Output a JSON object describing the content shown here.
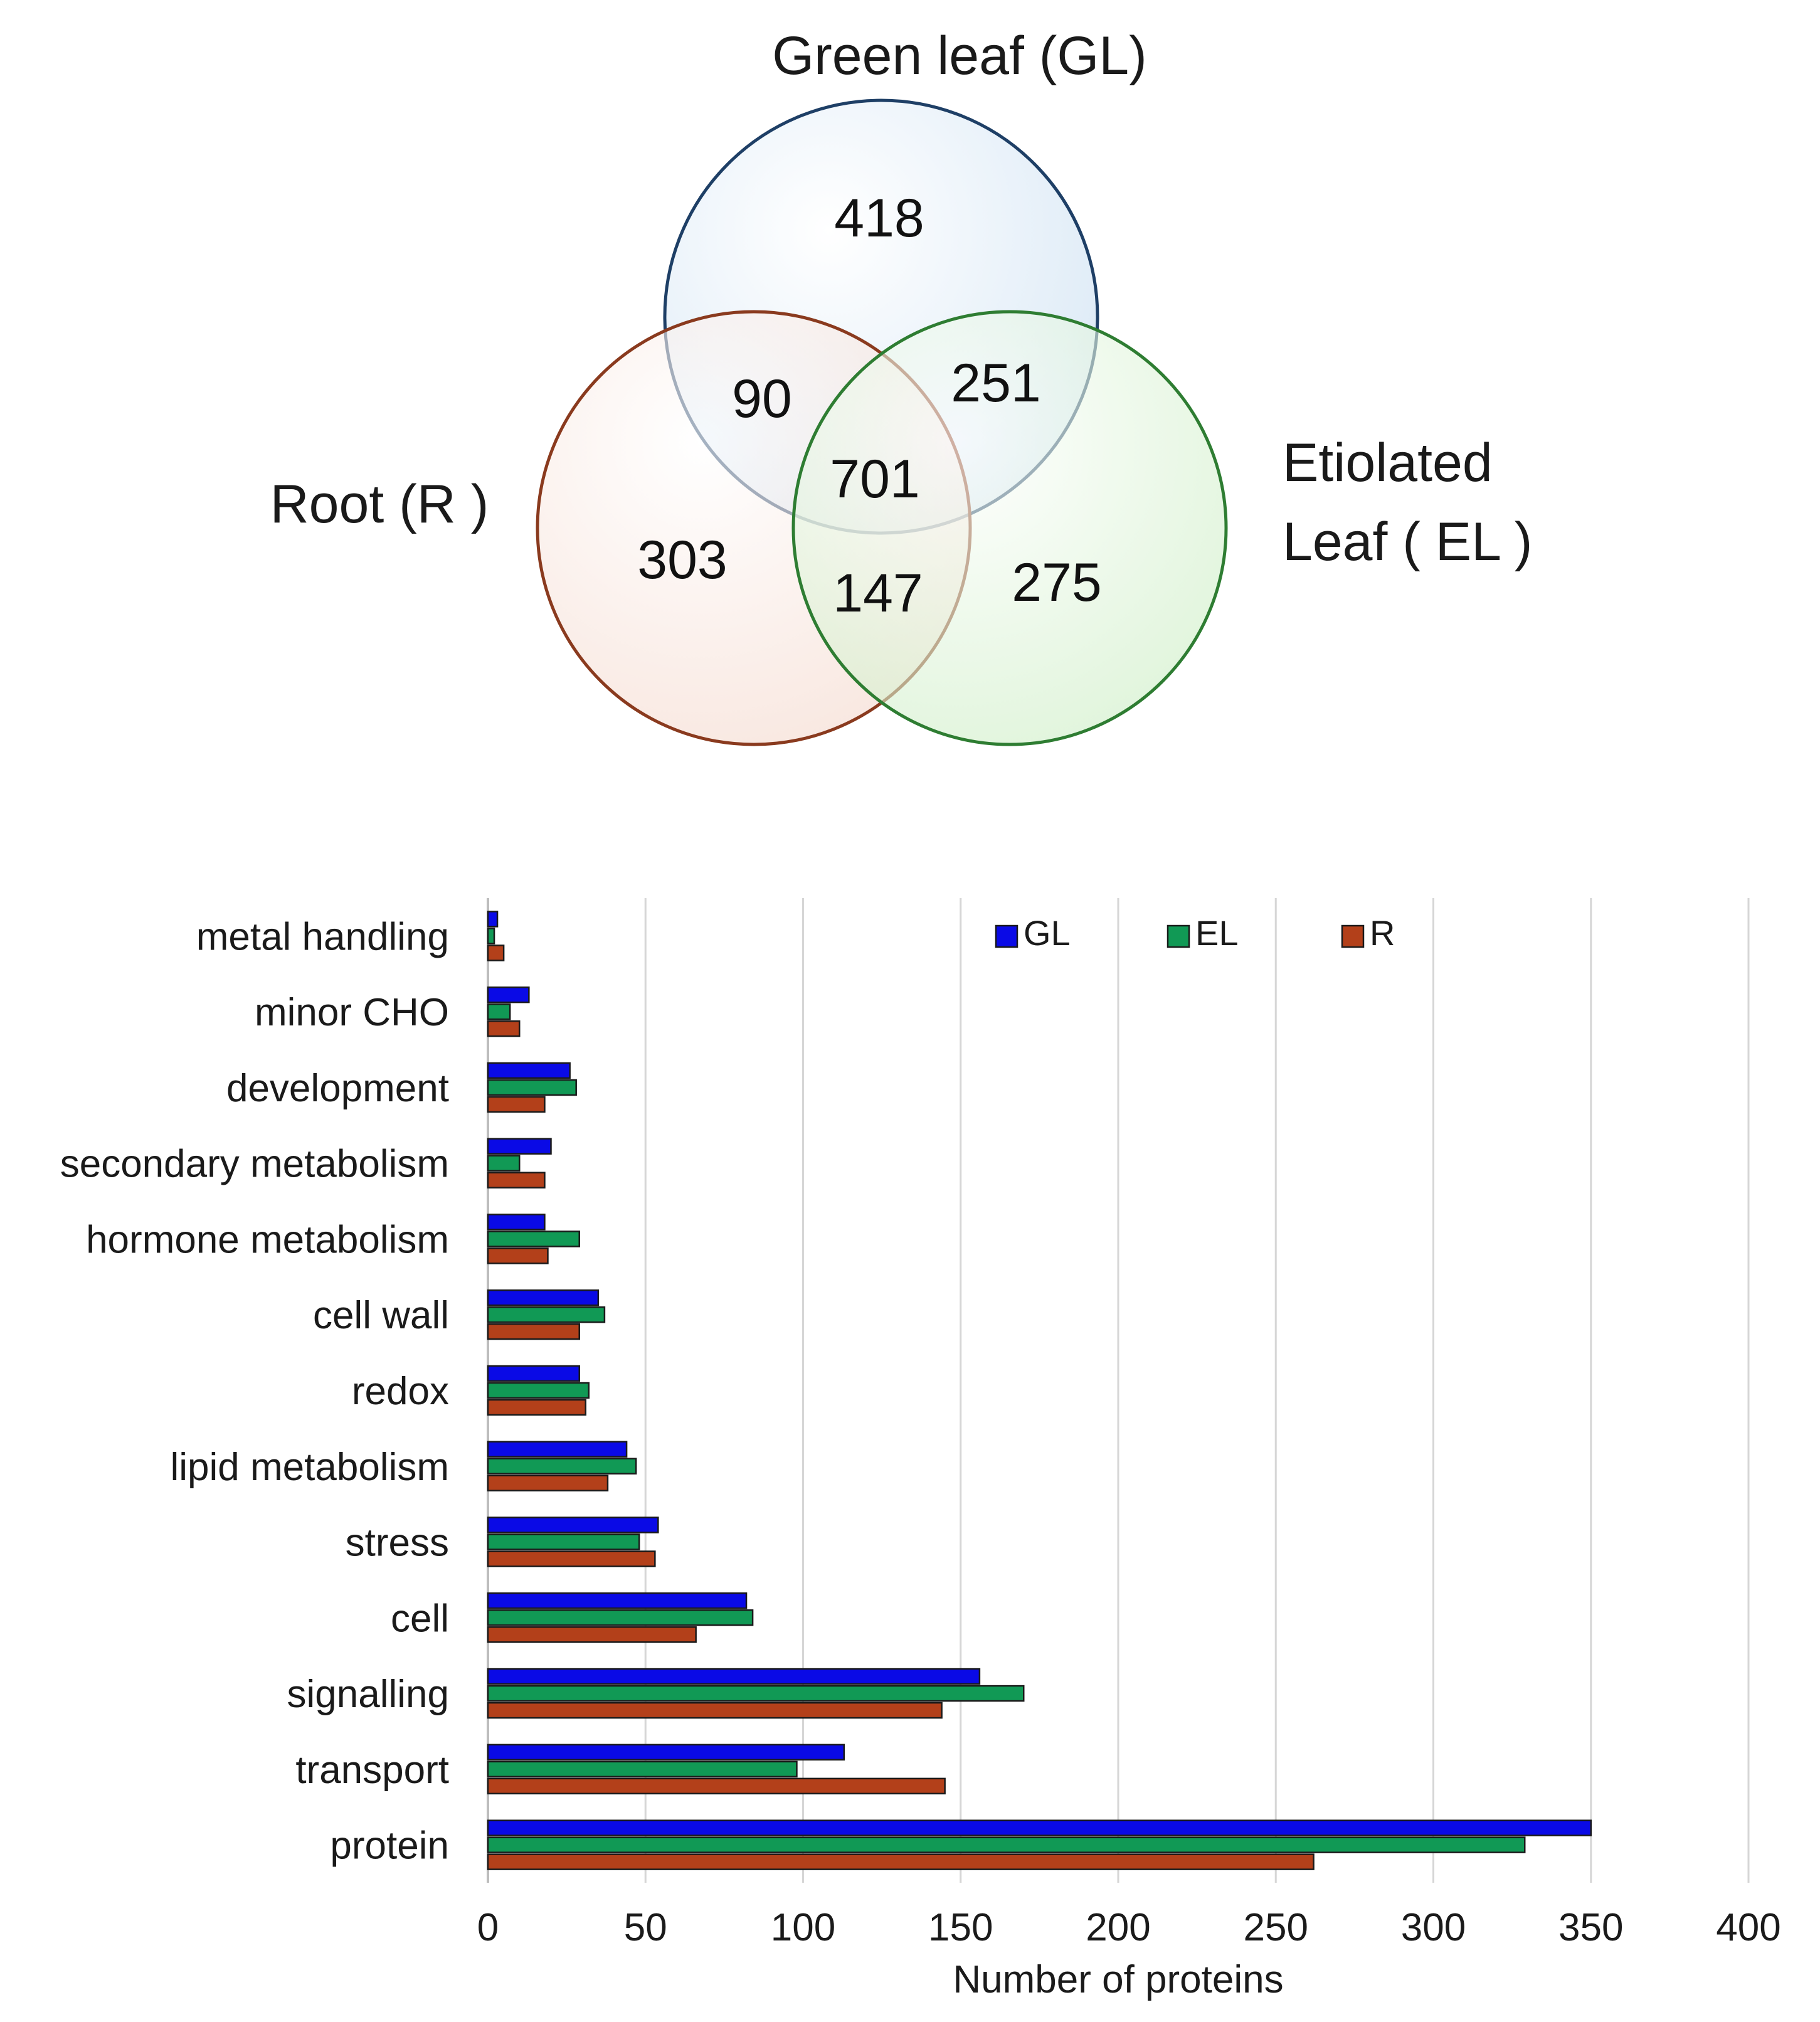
{
  "venn": {
    "sets": [
      {
        "key": "GL",
        "label_lines": [
          "Green leaf (GL)"
        ],
        "fill": "#cfe2f3",
        "stroke": "#1e3f66"
      },
      {
        "key": "R",
        "label_lines": [
          "Root (R )"
        ],
        "fill": "#f4d8cc",
        "stroke": "#8a3a1e"
      },
      {
        "key": "EL",
        "label_lines": [
          "Etiolated",
          "Leaf ( EL )"
        ],
        "fill": "#cdeec5",
        "stroke": "#2e7d32"
      }
    ],
    "regions": [
      {
        "sets": [
          "GL"
        ],
        "count": "418"
      },
      {
        "sets": [
          "R"
        ],
        "count": "303"
      },
      {
        "sets": [
          "EL"
        ],
        "count": "275"
      },
      {
        "sets": [
          "GL",
          "R"
        ],
        "count": "90"
      },
      {
        "sets": [
          "GL",
          "EL"
        ],
        "count": "251"
      },
      {
        "sets": [
          "R",
          "EL"
        ],
        "count": "147"
      },
      {
        "sets": [
          "GL",
          "R",
          "EL"
        ],
        "count": "701"
      }
    ]
  },
  "chart_data": {
    "type": "bar",
    "orientation": "horizontal",
    "categories": [
      "metal handling",
      "minor CHO",
      "development",
      "secondary metabolism",
      "hormone metabolism",
      "cell wall",
      "redox",
      "lipid metabolism",
      "stress",
      "cell",
      "signalling",
      "transport",
      "protein"
    ],
    "series": [
      {
        "name": "GL",
        "color": "#0a0ae6",
        "values": [
          3,
          13,
          26,
          20,
          18,
          35,
          29,
          44,
          54,
          82,
          156,
          113,
          350
        ]
      },
      {
        "name": "EL",
        "color": "#119955",
        "values": [
          2,
          7,
          28,
          10,
          29,
          37,
          32,
          47,
          48,
          84,
          170,
          98,
          329
        ]
      },
      {
        "name": "R",
        "color": "#b3401a",
        "values": [
          5,
          10,
          18,
          18,
          19,
          29,
          31,
          38,
          53,
          66,
          144,
          145,
          262
        ]
      }
    ],
    "xlabel": "Number of proteins",
    "ylabel": "",
    "xlim": [
      0,
      400
    ],
    "xticks": [
      "0",
      "50",
      "100",
      "150",
      "200",
      "250",
      "300",
      "350",
      "400"
    ],
    "grid": "vertical",
    "legend": "top-right"
  }
}
